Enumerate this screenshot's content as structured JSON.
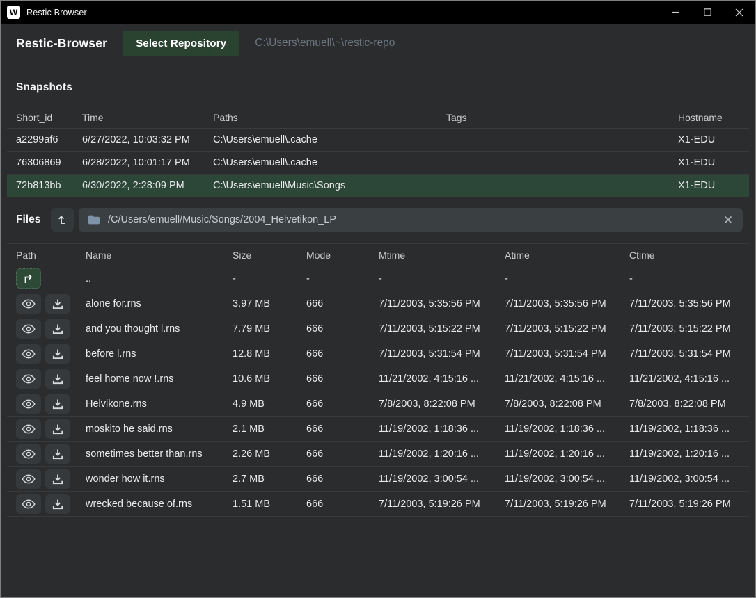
{
  "window": {
    "title": "Restic Browser",
    "app_icon_letter": "W",
    "controls": {
      "minimize": "minimize",
      "maximize": "maximize",
      "close": "close"
    }
  },
  "header": {
    "app_title": "Restic-Browser",
    "select_repository_label": "Select Repository",
    "repository_path": "C:\\Users\\emuell\\~\\restic-repo"
  },
  "colors": {
    "accent_green": "#2a4331",
    "selected_row_green": "#2c4637",
    "background": "#2a2c2e",
    "titlebar": "#000000"
  },
  "snapshots": {
    "heading": "Snapshots",
    "columns": [
      "Short_id",
      "Time",
      "Paths",
      "Tags",
      "Hostname"
    ],
    "rows": [
      {
        "short_id": "a2299af6",
        "time": "6/27/2022, 10:03:32 PM",
        "paths": "C:\\Users\\emuell\\.cache",
        "tags": "",
        "hostname": "X1-EDU",
        "selected": false
      },
      {
        "short_id": "76306869",
        "time": "6/28/2022, 10:01:17 PM",
        "paths": "C:\\Users\\emuell\\.cache",
        "tags": "",
        "hostname": "X1-EDU",
        "selected": false
      },
      {
        "short_id": "72b813bb",
        "time": "6/30/2022, 2:28:09 PM",
        "paths": "C:\\Users\\emuell\\Music\\Songs",
        "tags": "",
        "hostname": "X1-EDU",
        "selected": true
      }
    ]
  },
  "files": {
    "heading": "Files",
    "up_button_icon": "arrow-up-from-base-icon",
    "path_bar": {
      "folder_icon": "folder-icon",
      "path": "/C/Users/emuell/Music/Songs/2004_Helvetikon_LP",
      "clear_icon": "close-icon"
    },
    "columns": [
      "Path",
      "Name",
      "Size",
      "Mode",
      "Mtime",
      "Atime",
      "Ctime"
    ],
    "parent_row": {
      "name": "..",
      "size": "-",
      "mode": "-",
      "mtime": "-",
      "atime": "-",
      "ctime": "-"
    },
    "row_action_icons": [
      "eye-icon",
      "download-icon"
    ],
    "rows": [
      {
        "name": "alone for.rns",
        "size": "3.97 MB",
        "mode": "666",
        "mtime": "7/11/2003, 5:35:56 PM",
        "atime": "7/11/2003, 5:35:56 PM",
        "ctime": "7/11/2003, 5:35:56 PM"
      },
      {
        "name": "and you thought l.rns",
        "size": "7.79 MB",
        "mode": "666",
        "mtime": "7/11/2003, 5:15:22 PM",
        "atime": "7/11/2003, 5:15:22 PM",
        "ctime": "7/11/2003, 5:15:22 PM"
      },
      {
        "name": "before l.rns",
        "size": "12.8 MB",
        "mode": "666",
        "mtime": "7/11/2003, 5:31:54 PM",
        "atime": "7/11/2003, 5:31:54 PM",
        "ctime": "7/11/2003, 5:31:54 PM"
      },
      {
        "name": "feel home now !.rns",
        "size": "10.6 MB",
        "mode": "666",
        "mtime": "11/21/2002, 4:15:16 ...",
        "atime": "11/21/2002, 4:15:16 ...",
        "ctime": "11/21/2002, 4:15:16 ..."
      },
      {
        "name": "Helvikone.rns",
        "size": "4.9 MB",
        "mode": "666",
        "mtime": "7/8/2003, 8:22:08 PM",
        "atime": "7/8/2003, 8:22:08 PM",
        "ctime": "7/8/2003, 8:22:08 PM"
      },
      {
        "name": "moskito he said.rns",
        "size": "2.1 MB",
        "mode": "666",
        "mtime": "11/19/2002, 1:18:36 ...",
        "atime": "11/19/2002, 1:18:36 ...",
        "ctime": "11/19/2002, 1:18:36 ..."
      },
      {
        "name": "sometimes better than.rns",
        "size": "2.26 MB",
        "mode": "666",
        "mtime": "11/19/2002, 1:20:16 ...",
        "atime": "11/19/2002, 1:20:16 ...",
        "ctime": "11/19/2002, 1:20:16 ..."
      },
      {
        "name": "wonder how it.rns",
        "size": "2.7 MB",
        "mode": "666",
        "mtime": "11/19/2002, 3:00:54 ...",
        "atime": "11/19/2002, 3:00:54 ...",
        "ctime": "11/19/2002, 3:00:54 ..."
      },
      {
        "name": "wrecked because of.rns",
        "size": "1.51 MB",
        "mode": "666",
        "mtime": "7/11/2003, 5:19:26 PM",
        "atime": "7/11/2003, 5:19:26 PM",
        "ctime": "7/11/2003, 5:19:26 PM"
      }
    ]
  }
}
